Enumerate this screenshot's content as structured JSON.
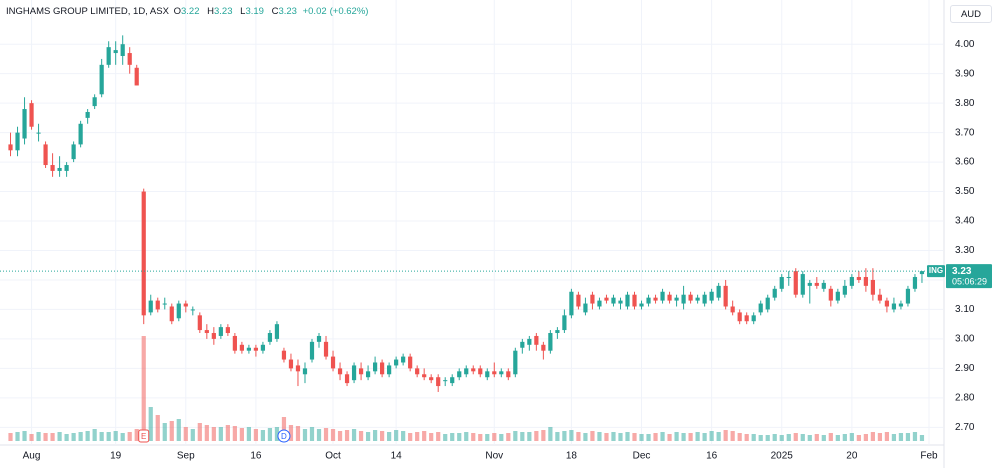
{
  "chart_data": {
    "type": "candlestick",
    "title": "INGHAMS GROUP LIMITED, 1D, ASX",
    "ohlc_labels": {
      "open": "O",
      "high": "H",
      "low": "L",
      "close": "C"
    },
    "change": {
      "value": 0.02,
      "label": "+0.02"
    },
    "change_pct": {
      "value": 0.62,
      "label": "(+0.62%)"
    },
    "currency": "AUD",
    "symbol": "ING",
    "countdown": "05:06:29",
    "up_color": "#26a69a",
    "down_color": "#ef5350",
    "grid": true,
    "open": [
      3.66,
      3.64,
      3.68,
      3.8,
      3.7,
      3.66,
      3.59,
      3.57,
      3.57,
      3.61,
      3.66,
      3.75,
      3.79,
      3.83,
      3.93,
      3.97,
      3.96,
      3.97,
      3.92,
      3.5,
      3.09,
      3.13,
      3.12,
      3.11,
      3.07,
      3.12,
      3.1,
      3.08,
      3.03,
      3.02,
      3.01,
      3.04,
      3.01,
      2.98,
      2.96,
      2.97,
      2.96,
      2.99,
      3.0,
      2.96,
      2.93,
      2.91,
      2.88,
      2.93,
      2.99,
      2.99,
      2.94,
      2.9,
      2.88,
      2.86,
      2.9,
      2.87,
      2.89,
      2.92,
      2.88,
      2.91,
      2.92,
      2.94,
      2.9,
      2.88,
      2.87,
      2.87,
      2.86,
      2.85,
      2.87,
      2.88,
      2.9,
      2.9,
      2.87,
      2.89,
      2.88,
      2.89,
      2.88,
      2.97,
      2.98,
      3.01,
      2.98,
      2.96,
      3.02,
      3.03,
      3.08,
      3.15,
      3.09,
      3.15,
      3.11,
      3.14,
      3.12,
      3.12,
      3.11,
      3.15,
      3.11,
      3.12,
      3.14,
      3.13,
      3.15,
      3.13,
      3.12,
      3.15,
      3.13,
      3.12,
      3.13,
      3.14,
      3.18,
      3.11,
      3.09,
      3.08,
      3.06,
      3.09,
      3.1,
      3.14,
      3.17,
      3.21,
      3.23,
      3.15,
      3.18,
      3.19,
      3.17,
      3.17,
      3.13,
      3.15,
      3.18,
      3.21,
      3.21,
      3.2,
      3.15,
      3.13,
      3.1,
      3.11,
      3.12,
      3.17,
      3.22
    ],
    "high": [
      3.7,
      3.72,
      3.82,
      3.81,
      3.73,
      3.67,
      3.63,
      3.62,
      3.6,
      3.67,
      3.74,
      3.78,
      3.83,
      3.95,
      4.01,
      4.01,
      4.03,
      3.99,
      3.93,
      3.51,
      3.15,
      3.14,
      3.14,
      3.12,
      3.13,
      3.13,
      3.11,
      3.09,
      3.05,
      3.04,
      3.05,
      3.05,
      3.02,
      2.99,
      2.98,
      2.98,
      2.99,
      3.03,
      3.06,
      2.97,
      2.95,
      2.93,
      2.92,
      3.0,
      3.02,
      3.01,
      2.96,
      2.92,
      2.89,
      2.92,
      2.92,
      2.91,
      2.94,
      2.93,
      2.92,
      2.94,
      2.95,
      2.95,
      2.91,
      2.9,
      2.88,
      2.88,
      2.87,
      2.88,
      2.9,
      2.91,
      2.91,
      2.91,
      2.9,
      2.92,
      2.9,
      2.9,
      2.97,
      3.0,
      3.01,
      3.02,
      2.99,
      3.03,
      3.04,
      3.1,
      3.17,
      3.16,
      3.14,
      3.16,
      3.14,
      3.15,
      3.15,
      3.14,
      3.16,
      3.16,
      3.13,
      3.15,
      3.15,
      3.17,
      3.16,
      3.15,
      3.18,
      3.16,
      3.15,
      3.16,
      3.17,
      3.19,
      3.2,
      3.13,
      3.1,
      3.09,
      3.09,
      3.13,
      3.15,
      3.18,
      3.22,
      3.23,
      3.24,
      3.23,
      3.2,
      3.21,
      3.2,
      3.18,
      3.17,
      3.2,
      3.22,
      3.23,
      3.24,
      3.24,
      3.17,
      3.14,
      3.14,
      3.13,
      3.18,
      3.22,
      3.23
    ],
    "low": [
      3.62,
      3.62,
      3.66,
      3.71,
      3.67,
      3.58,
      3.55,
      3.55,
      3.55,
      3.6,
      3.65,
      3.73,
      3.78,
      3.82,
      3.92,
      3.93,
      3.93,
      3.9,
      3.86,
      3.05,
      3.08,
      3.09,
      3.1,
      3.05,
      3.06,
      3.09,
      3.08,
      3.02,
      3.0,
      2.98,
      3.0,
      3.01,
      2.95,
      2.95,
      2.95,
      2.94,
      2.95,
      2.98,
      2.99,
      2.92,
      2.89,
      2.84,
      2.85,
      2.92,
      2.97,
      2.93,
      2.89,
      2.86,
      2.84,
      2.85,
      2.86,
      2.86,
      2.88,
      2.87,
      2.87,
      2.9,
      2.91,
      2.89,
      2.87,
      2.86,
      2.85,
      2.82,
      2.84,
      2.84,
      2.86,
      2.87,
      2.88,
      2.87,
      2.86,
      2.87,
      2.87,
      2.86,
      2.87,
      2.95,
      2.96,
      2.96,
      2.93,
      2.95,
      3.0,
      3.02,
      3.07,
      3.1,
      3.08,
      3.1,
      3.1,
      3.12,
      3.11,
      3.1,
      3.1,
      3.1,
      3.1,
      3.11,
      3.12,
      3.12,
      3.12,
      3.11,
      3.1,
      3.12,
      3.12,
      3.11,
      3.12,
      3.13,
      3.1,
      3.08,
      3.05,
      3.05,
      3.05,
      3.08,
      3.09,
      3.13,
      3.16,
      3.18,
      3.14,
      3.14,
      3.12,
      3.17,
      3.16,
      3.11,
      3.12,
      3.14,
      3.17,
      3.19,
      3.16,
      3.13,
      3.12,
      3.09,
      3.09,
      3.1,
      3.11,
      3.16,
      3.19
    ],
    "close": [
      3.64,
      3.7,
      3.78,
      3.72,
      3.7,
      3.59,
      3.57,
      3.58,
      3.59,
      3.66,
      3.73,
      3.77,
      3.82,
      3.93,
      3.99,
      3.98,
      4.0,
      3.93,
      3.86,
      3.08,
      3.13,
      3.1,
      3.12,
      3.06,
      3.12,
      3.11,
      3.1,
      3.03,
      3.02,
      3.0,
      3.04,
      3.02,
      2.96,
      2.96,
      2.97,
      2.96,
      2.98,
      3.02,
      3.05,
      2.93,
      2.9,
      2.89,
      2.9,
      2.99,
      3.01,
      2.94,
      2.9,
      2.88,
      2.85,
      2.91,
      2.88,
      2.89,
      2.92,
      2.88,
      2.91,
      2.93,
      2.94,
      2.9,
      2.88,
      2.87,
      2.86,
      2.84,
      2.86,
      2.87,
      2.89,
      2.9,
      2.89,
      2.88,
      2.89,
      2.88,
      2.89,
      2.87,
      2.96,
      2.99,
      3.0,
      2.98,
      2.96,
      3.02,
      3.03,
      3.08,
      3.16,
      3.11,
      3.12,
      3.12,
      3.13,
      3.13,
      3.14,
      3.13,
      3.15,
      3.11,
      3.12,
      3.14,
      3.13,
      3.16,
      3.13,
      3.14,
      3.15,
      3.13,
      3.14,
      3.15,
      3.16,
      3.18,
      3.11,
      3.09,
      3.06,
      3.06,
      3.08,
      3.12,
      3.14,
      3.17,
      3.21,
      3.21,
      3.15,
      3.22,
      3.19,
      3.18,
      3.19,
      3.13,
      3.16,
      3.18,
      3.21,
      3.2,
      3.18,
      3.15,
      3.13,
      3.11,
      3.12,
      3.12,
      3.17,
      3.21,
      3.23
    ],
    "volume": [
      8,
      9,
      10,
      7,
      9,
      8,
      8,
      9,
      7,
      8,
      9,
      10,
      12,
      9,
      9,
      10,
      8,
      9,
      12,
      105,
      34,
      26,
      18,
      20,
      22,
      14,
      12,
      18,
      16,
      14,
      14,
      16,
      15,
      13,
      14,
      12,
      11,
      13,
      14,
      24,
      16,
      15,
      12,
      14,
      12,
      13,
      12,
      10,
      11,
      12,
      10,
      9,
      11,
      10,
      9,
      11,
      10,
      8,
      9,
      10,
      8,
      9,
      7,
      8,
      8,
      9,
      8,
      7,
      7,
      8,
      7,
      8,
      10,
      9,
      9,
      10,
      11,
      14,
      9,
      10,
      11,
      9,
      8,
      10,
      9,
      8,
      9,
      8,
      9,
      8,
      7,
      7,
      8,
      9,
      7,
      9,
      8,
      8,
      9,
      8,
      10,
      9,
      11,
      10,
      8,
      7,
      7,
      6,
      6,
      7,
      6,
      7,
      8,
      7,
      6,
      7,
      6,
      8,
      6,
      7,
      8,
      6,
      7,
      9,
      8,
      9,
      7,
      8,
      8,
      9,
      6
    ],
    "volume_lim": [
      0,
      120
    ],
    "events": [
      {
        "label": "E",
        "index": 19
      },
      {
        "label": "D",
        "index": 39
      }
    ],
    "xlim": [
      -1.5,
      133
    ],
    "xticks": [
      {
        "value": 3,
        "label": "Aug"
      },
      {
        "value": 15,
        "label": "19"
      },
      {
        "value": 25,
        "label": "Sep"
      },
      {
        "value": 35,
        "label": "16"
      },
      {
        "value": 46,
        "label": "Oct"
      },
      {
        "value": 55,
        "label": "14"
      },
      {
        "value": 69,
        "label": "Nov"
      },
      {
        "value": 80,
        "label": "18"
      },
      {
        "value": 90,
        "label": "Dec"
      },
      {
        "value": 100,
        "label": "16"
      },
      {
        "value": 110,
        "label": "2025"
      },
      {
        "value": 120,
        "label": "20"
      },
      {
        "value": 131,
        "label": "Feb"
      }
    ],
    "ylim": [
      2.64,
      4.15
    ],
    "yticks": [
      {
        "value": 2.7,
        "label": "2.70"
      },
      {
        "value": 2.8,
        "label": "2.80"
      },
      {
        "value": 2.9,
        "label": "2.90"
      },
      {
        "value": 3.0,
        "label": "3.00"
      },
      {
        "value": 3.1,
        "label": "3.10"
      },
      {
        "value": 3.2,
        "label": "3.20"
      },
      {
        "value": 3.3,
        "label": "3.30"
      },
      {
        "value": 3.4,
        "label": "3.40"
      },
      {
        "value": 3.5,
        "label": "3.50"
      },
      {
        "value": 3.6,
        "label": "3.60"
      },
      {
        "value": 3.7,
        "label": "3.70"
      },
      {
        "value": 3.8,
        "label": "3.80"
      },
      {
        "value": 3.9,
        "label": "3.90"
      },
      {
        "value": 4.0,
        "label": "4.00"
      }
    ]
  }
}
